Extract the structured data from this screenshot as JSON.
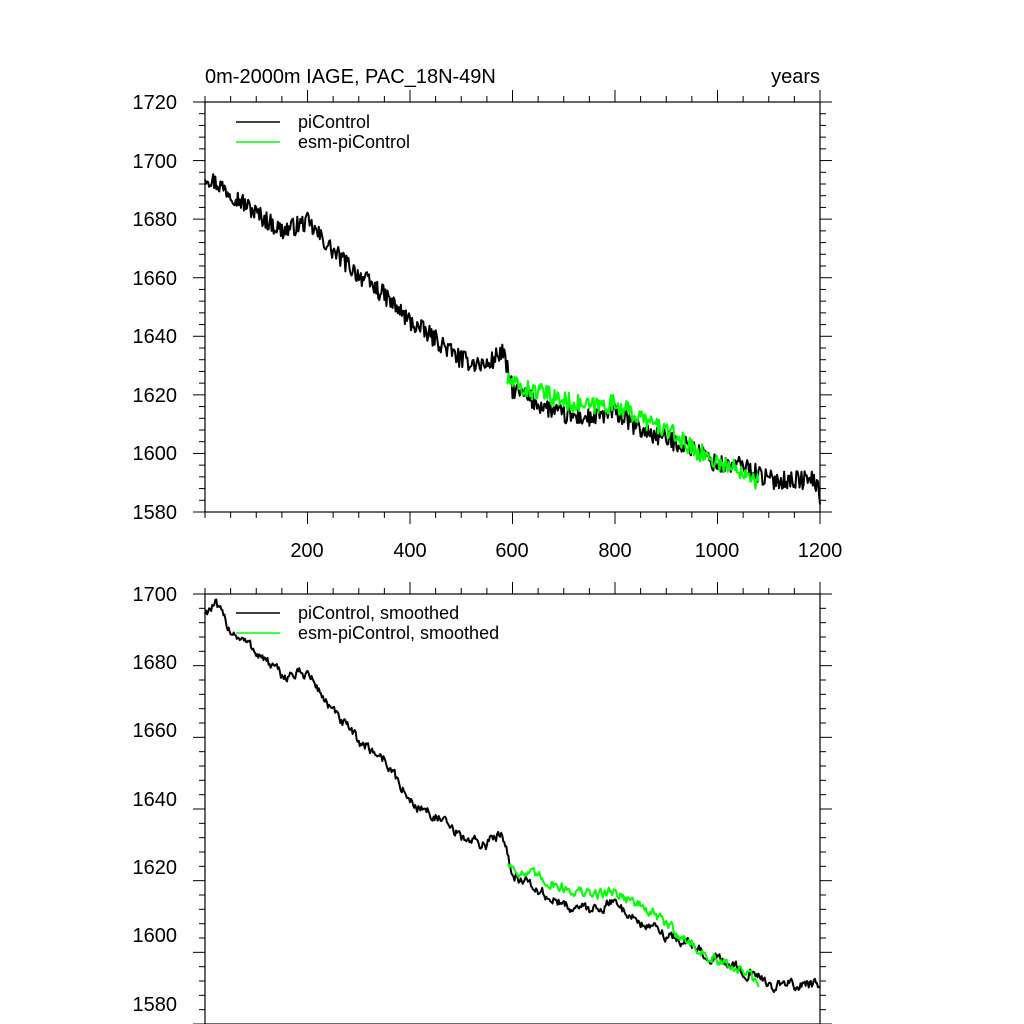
{
  "colors": {
    "picontrol": "#000000",
    "esm_picontrol": "#00ff00",
    "frame": "#000000"
  },
  "chart_data": [
    {
      "type": "line",
      "title": "0m-2000m IAGE, PAC_18N-49N",
      "units_label": "years",
      "xlim": [
        0,
        1200
      ],
      "ylim": [
        1580,
        1720
      ],
      "x_ticks": [
        "200",
        "400",
        "600",
        "800",
        "1000",
        "1200"
      ],
      "y_ticks": [
        "1580",
        "1600",
        "1620",
        "1640",
        "1660",
        "1680",
        "1700",
        "1720"
      ],
      "grid": false,
      "legend_position": "top-left",
      "series": [
        {
          "name": "piControl",
          "color": "#000000",
          "x": [
            0,
            50,
            100,
            150,
            200,
            250,
            300,
            350,
            400,
            450,
            500,
            550,
            580,
            600,
            650,
            700,
            750,
            800,
            850,
            900,
            950,
            1000,
            1050,
            1100,
            1150,
            1190,
            1200
          ],
          "y": [
            1695,
            1689,
            1682,
            1676,
            1679,
            1669,
            1661,
            1654,
            1645,
            1639,
            1632,
            1630,
            1635,
            1622,
            1617,
            1613,
            1612,
            1614,
            1608,
            1605,
            1602,
            1596,
            1596,
            1591,
            1591,
            1591,
            1585
          ]
        },
        {
          "name": "esm-piControl",
          "color": "#00ff00",
          "x": [
            590,
            620,
            650,
            700,
            750,
            800,
            850,
            900,
            950,
            1000,
            1030,
            1060,
            1080
          ],
          "y": [
            1625,
            1622,
            1621,
            1618,
            1616,
            1617,
            1612,
            1608,
            1602,
            1597,
            1595,
            1594,
            1590
          ]
        }
      ]
    },
    {
      "type": "line",
      "title": "",
      "xlim": [
        0,
        1200
      ],
      "ylim": [
        1580,
        1700
      ],
      "y_ticks": [
        "1580",
        "1600",
        "1620",
        "1640",
        "1660",
        "1680",
        "1700"
      ],
      "grid": false,
      "legend_position": "top-left",
      "series": [
        {
          "name": "piControl, smoothed",
          "color": "#000000",
          "x": [
            0,
            20,
            50,
            100,
            150,
            200,
            250,
            300,
            350,
            400,
            450,
            500,
            550,
            580,
            600,
            650,
            700,
            750,
            800,
            850,
            900,
            950,
            1000,
            1050,
            1100,
            1150,
            1190,
            1200
          ],
          "y": [
            1695,
            1697,
            1690,
            1684,
            1677,
            1678,
            1667,
            1659,
            1654,
            1642,
            1638,
            1632,
            1630,
            1634,
            1622,
            1617,
            1613,
            1612,
            1614,
            1608,
            1605,
            1602,
            1598,
            1595,
            1591,
            1591,
            1591,
            1589
          ]
        },
        {
          "name": "esm-piControl, smoothed",
          "color": "#00ff00",
          "x": [
            590,
            620,
            650,
            700,
            750,
            800,
            850,
            900,
            950,
            1000,
            1030,
            1060,
            1080
          ],
          "y": [
            1625,
            1622,
            1621,
            1618,
            1616,
            1617,
            1613,
            1608,
            1602,
            1597,
            1596,
            1594,
            1590
          ]
        }
      ]
    }
  ]
}
